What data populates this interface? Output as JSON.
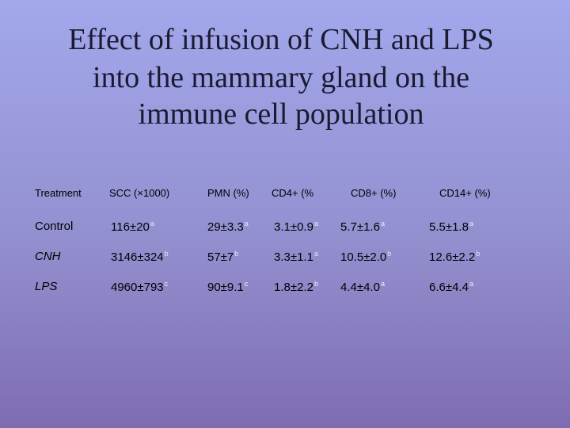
{
  "header": {
    "title_lines": [
      "Effect of infusion of CNH and  LPS",
      "into the mammary gland on the",
      "immune cell population"
    ]
  },
  "table": {
    "columns": [
      "Treatment",
      "SCC (×1000)",
      "PMN (%)",
      "CD4+ (%",
      "CD8+ (%)",
      "CD14+ (%)"
    ],
    "rows": [
      [
        {
          "text": "Control"
        },
        {
          "text": "116±20",
          "sup": "a"
        },
        {
          "text": "29±3.3",
          "sup": "a"
        },
        {
          "text": "3.1±0.9",
          "sup": "a"
        },
        {
          "text": "5.7±1.6",
          "sup": "a"
        },
        {
          "text": "5.5±1.8",
          "sup": "a"
        }
      ],
      [
        {
          "text": "CNH"
        },
        {
          "text": "3146±324",
          "sup": "b"
        },
        {
          "text": "57±7",
          "sup": "b"
        },
        {
          "text": "3.3±1.1",
          "sup": "a"
        },
        {
          "text": "10.5±2.0",
          "sup": "b"
        },
        {
          "text": "12.6±2.2",
          "sup": "b"
        }
      ],
      [
        {
          "text": "LPS"
        },
        {
          "text": "4960±793",
          "sup": "c"
        },
        {
          "text": "90±9.1",
          "sup": "c"
        },
        {
          "text": "1.8±2.2",
          "sup": "b"
        },
        {
          "text": "4.4±4.0",
          "sup": "a"
        },
        {
          "text": "6.6±4.4",
          "sup": "a"
        }
      ]
    ]
  }
}
